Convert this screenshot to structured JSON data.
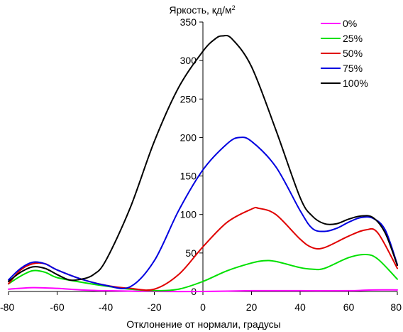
{
  "chart_data": {
    "type": "line",
    "title": "",
    "xlabel": "Отклонение от нормали, градусы",
    "ylabel": "Яркость, кд/м",
    "ylabel_superscript": "2",
    "xlim": [
      -80,
      80
    ],
    "ylim": [
      0,
      350
    ],
    "x_ticks": [
      -80,
      -60,
      -40,
      -20,
      0,
      20,
      40,
      60,
      80
    ],
    "y_ticks": [
      0,
      50,
      100,
      150,
      200,
      250,
      300,
      350
    ],
    "grid": false,
    "legend_position": "top-right",
    "series": [
      {
        "name": "0%",
        "color": "#ff00ff",
        "points": [
          [
            -80,
            3
          ],
          [
            -70,
            5
          ],
          [
            -60,
            4
          ],
          [
            -50,
            2
          ],
          [
            -40,
            1
          ],
          [
            -20,
            0
          ],
          [
            0,
            0
          ],
          [
            20,
            1
          ],
          [
            40,
            1
          ],
          [
            60,
            1
          ],
          [
            70,
            2
          ],
          [
            80,
            2
          ]
        ]
      },
      {
        "name": "25%",
        "color": "#00e000",
        "points": [
          [
            -80,
            10
          ],
          [
            -75,
            20
          ],
          [
            -70,
            27
          ],
          [
            -65,
            25
          ],
          [
            -60,
            18
          ],
          [
            -50,
            12
          ],
          [
            -40,
            7
          ],
          [
            -30,
            3
          ],
          [
            -20,
            1
          ],
          [
            -10,
            3
          ],
          [
            0,
            13
          ],
          [
            10,
            27
          ],
          [
            20,
            37
          ],
          [
            25,
            40
          ],
          [
            30,
            39
          ],
          [
            40,
            31
          ],
          [
            45,
            29
          ],
          [
            50,
            30
          ],
          [
            60,
            44
          ],
          [
            67,
            48
          ],
          [
            72,
            42
          ],
          [
            80,
            16
          ]
        ]
      },
      {
        "name": "50%",
        "color": "#e00000",
        "points": [
          [
            -80,
            10
          ],
          [
            -75,
            28
          ],
          [
            -70,
            36
          ],
          [
            -65,
            36
          ],
          [
            -60,
            28
          ],
          [
            -50,
            16
          ],
          [
            -40,
            8
          ],
          [
            -30,
            4
          ],
          [
            -20,
            3
          ],
          [
            -10,
            22
          ],
          [
            0,
            58
          ],
          [
            10,
            90
          ],
          [
            20,
            107
          ],
          [
            23,
            108
          ],
          [
            30,
            100
          ],
          [
            40,
            68
          ],
          [
            45,
            57
          ],
          [
            50,
            57
          ],
          [
            60,
            72
          ],
          [
            67,
            80
          ],
          [
            72,
            76
          ],
          [
            80,
            30
          ]
        ]
      },
      {
        "name": "75%",
        "color": "#0000e0",
        "points": [
          [
            -80,
            15
          ],
          [
            -75,
            30
          ],
          [
            -70,
            38
          ],
          [
            -65,
            36
          ],
          [
            -60,
            28
          ],
          [
            -50,
            16
          ],
          [
            -40,
            8
          ],
          [
            -30,
            6
          ],
          [
            -20,
            40
          ],
          [
            -10,
            105
          ],
          [
            0,
            158
          ],
          [
            10,
            192
          ],
          [
            15,
            200
          ],
          [
            20,
            195
          ],
          [
            30,
            162
          ],
          [
            40,
            105
          ],
          [
            45,
            82
          ],
          [
            50,
            78
          ],
          [
            55,
            82
          ],
          [
            60,
            90
          ],
          [
            65,
            96
          ],
          [
            70,
            95
          ],
          [
            75,
            80
          ],
          [
            80,
            35
          ]
        ]
      },
      {
        "name": "100%",
        "color": "#000000",
        "points": [
          [
            -80,
            13
          ],
          [
            -75,
            25
          ],
          [
            -70,
            32
          ],
          [
            -65,
            30
          ],
          [
            -60,
            22
          ],
          [
            -55,
            15
          ],
          [
            -50,
            16
          ],
          [
            -45,
            22
          ],
          [
            -40,
            40
          ],
          [
            -30,
            108
          ],
          [
            -20,
            195
          ],
          [
            -10,
            265
          ],
          [
            0,
            312
          ],
          [
            5,
            328
          ],
          [
            8,
            332
          ],
          [
            12,
            328
          ],
          [
            20,
            292
          ],
          [
            30,
            210
          ],
          [
            40,
            122
          ],
          [
            45,
            98
          ],
          [
            50,
            88
          ],
          [
            55,
            88
          ],
          [
            60,
            94
          ],
          [
            65,
            98
          ],
          [
            70,
            96
          ],
          [
            75,
            76
          ],
          [
            80,
            34
          ]
        ]
      }
    ]
  }
}
